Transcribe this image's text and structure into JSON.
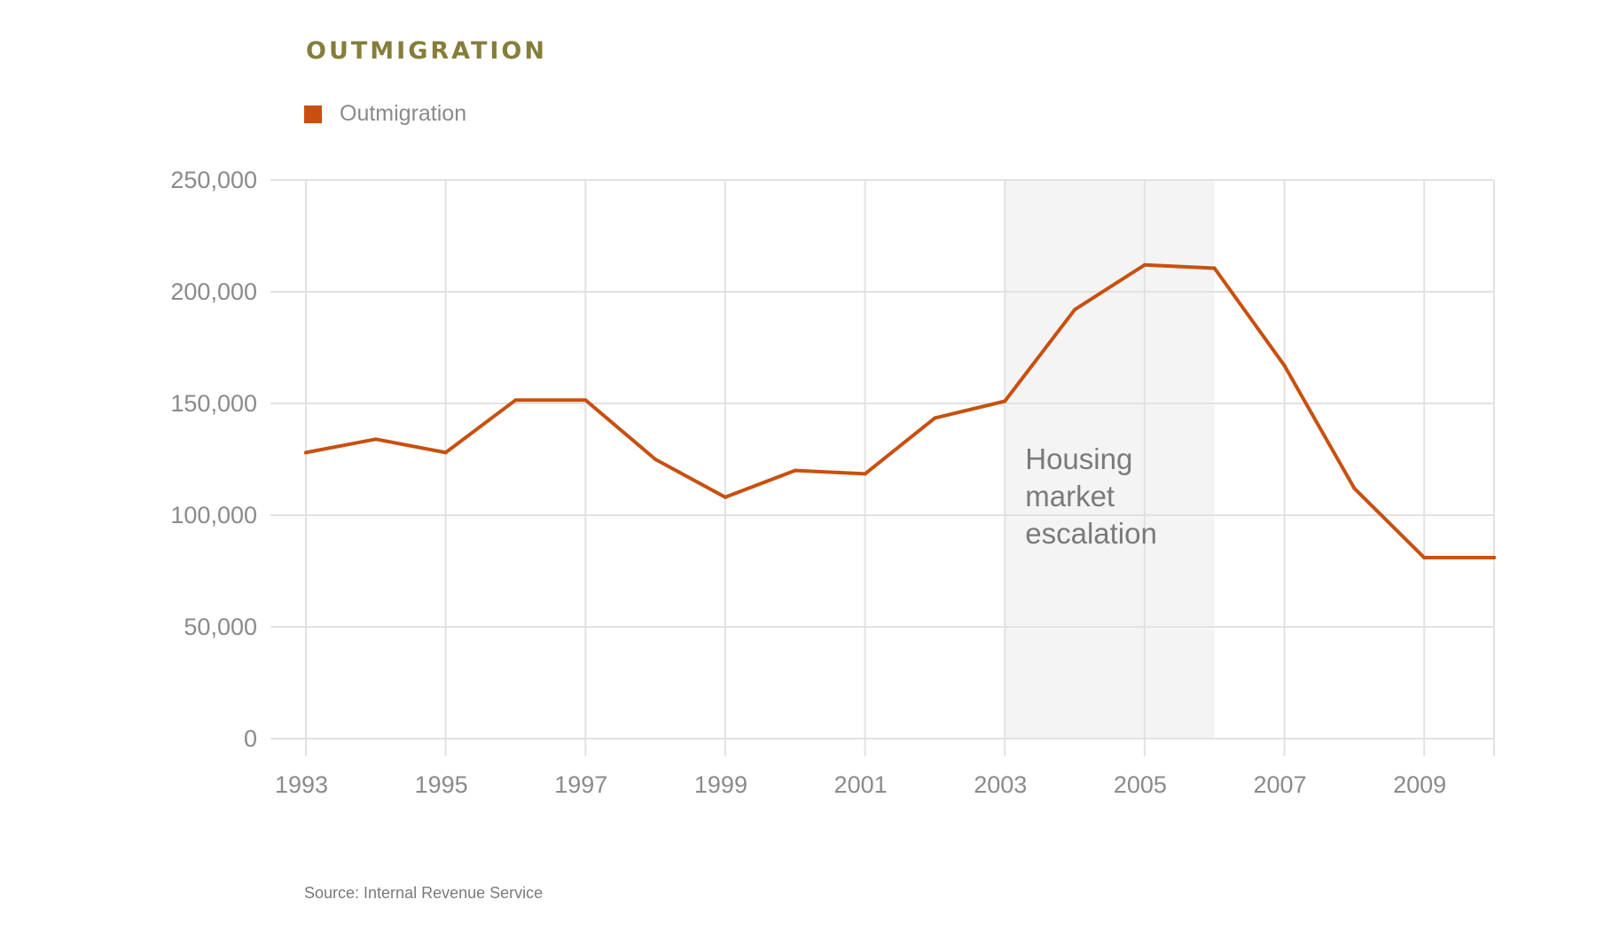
{
  "chart_data": {
    "type": "line",
    "title": "OUTMIGRATION",
    "legend": {
      "position": "top-left",
      "entries": [
        "Outmigration"
      ]
    },
    "x": [
      1993,
      1994,
      1995,
      1996,
      1997,
      1998,
      1999,
      2000,
      2001,
      2002,
      2003,
      2004,
      2005,
      2006,
      2007,
      2008,
      2009,
      2010
    ],
    "series": [
      {
        "name": "Outmigration",
        "color": "#c8500f",
        "values": [
          128000,
          134000,
          128000,
          151500,
          151500,
          125000,
          108000,
          120000,
          118500,
          143500,
          151000,
          192000,
          212000,
          210500,
          167000,
          112000,
          81000,
          81000
        ]
      }
    ],
    "x_ticks": [
      "1993",
      "1995",
      "1997",
      "1999",
      "2001",
      "2003",
      "2005",
      "2007",
      "2009"
    ],
    "y_ticks": [
      "0",
      "50,000",
      "100,000",
      "150,000",
      "200,000",
      "250,000"
    ],
    "xlim": [
      1993,
      2010
    ],
    "ylim": [
      0,
      250000
    ],
    "grid": true,
    "annotation": {
      "lines": [
        "Housing",
        "market",
        "escalation"
      ],
      "x_start": 2003,
      "x_end": 2006,
      "shade_color": "#f4f4f4"
    },
    "source": "Source: Internal Revenue Service",
    "colors": {
      "title": "#857e3a",
      "line": "#c8500f",
      "grid": "#e2e2e2",
      "text": "#8a8a8a"
    }
  }
}
